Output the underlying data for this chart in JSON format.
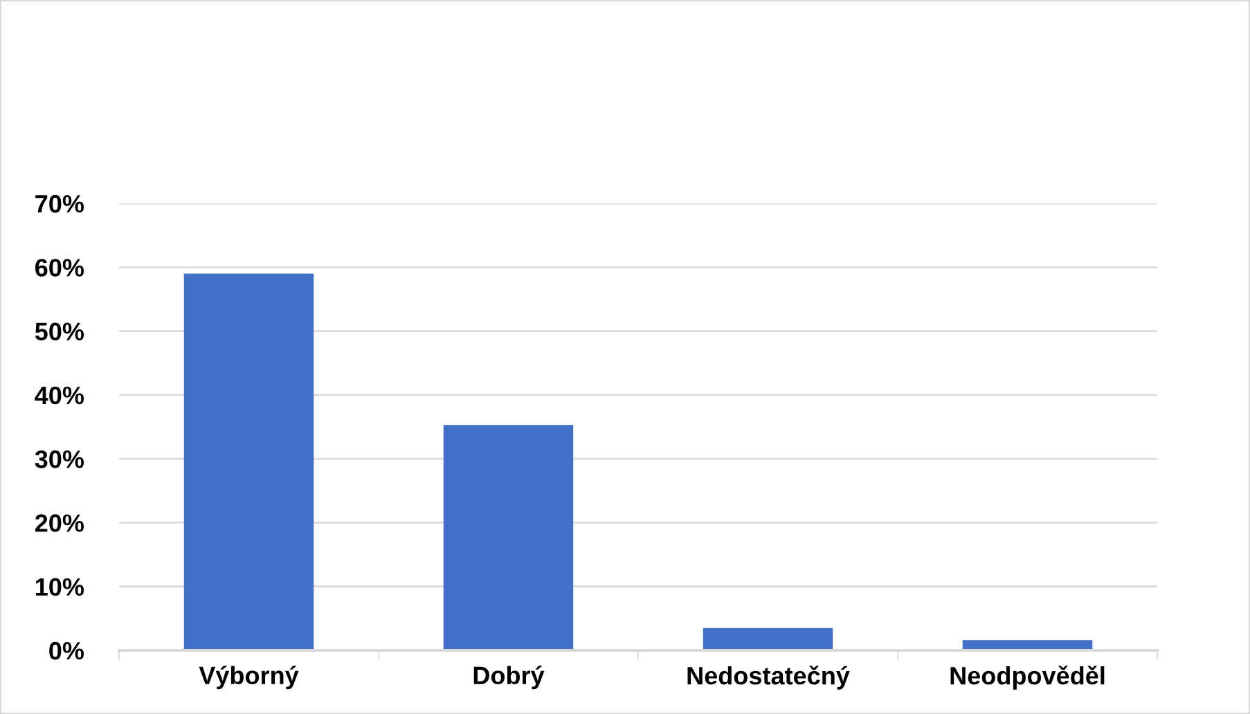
{
  "chart_data": {
    "type": "bar",
    "categories": [
      "Výborný",
      "Dobrý",
      "Nedostatečný",
      "Neodpověděl"
    ],
    "values": [
      59,
      35.3,
      3.5,
      1.6
    ],
    "color": "#4270c6",
    "ylim": [
      0,
      70
    ],
    "yticks": [
      {
        "value": 0,
        "label": "0%"
      },
      {
        "value": 10,
        "label": "10%"
      },
      {
        "value": 20,
        "label": "20%"
      },
      {
        "value": 30,
        "label": "30%"
      },
      {
        "value": 40,
        "label": "40%"
      },
      {
        "value": 50,
        "label": "50%"
      },
      {
        "value": 60,
        "label": "60%"
      },
      {
        "value": 70,
        "label": "70%"
      }
    ],
    "grid": "y"
  }
}
